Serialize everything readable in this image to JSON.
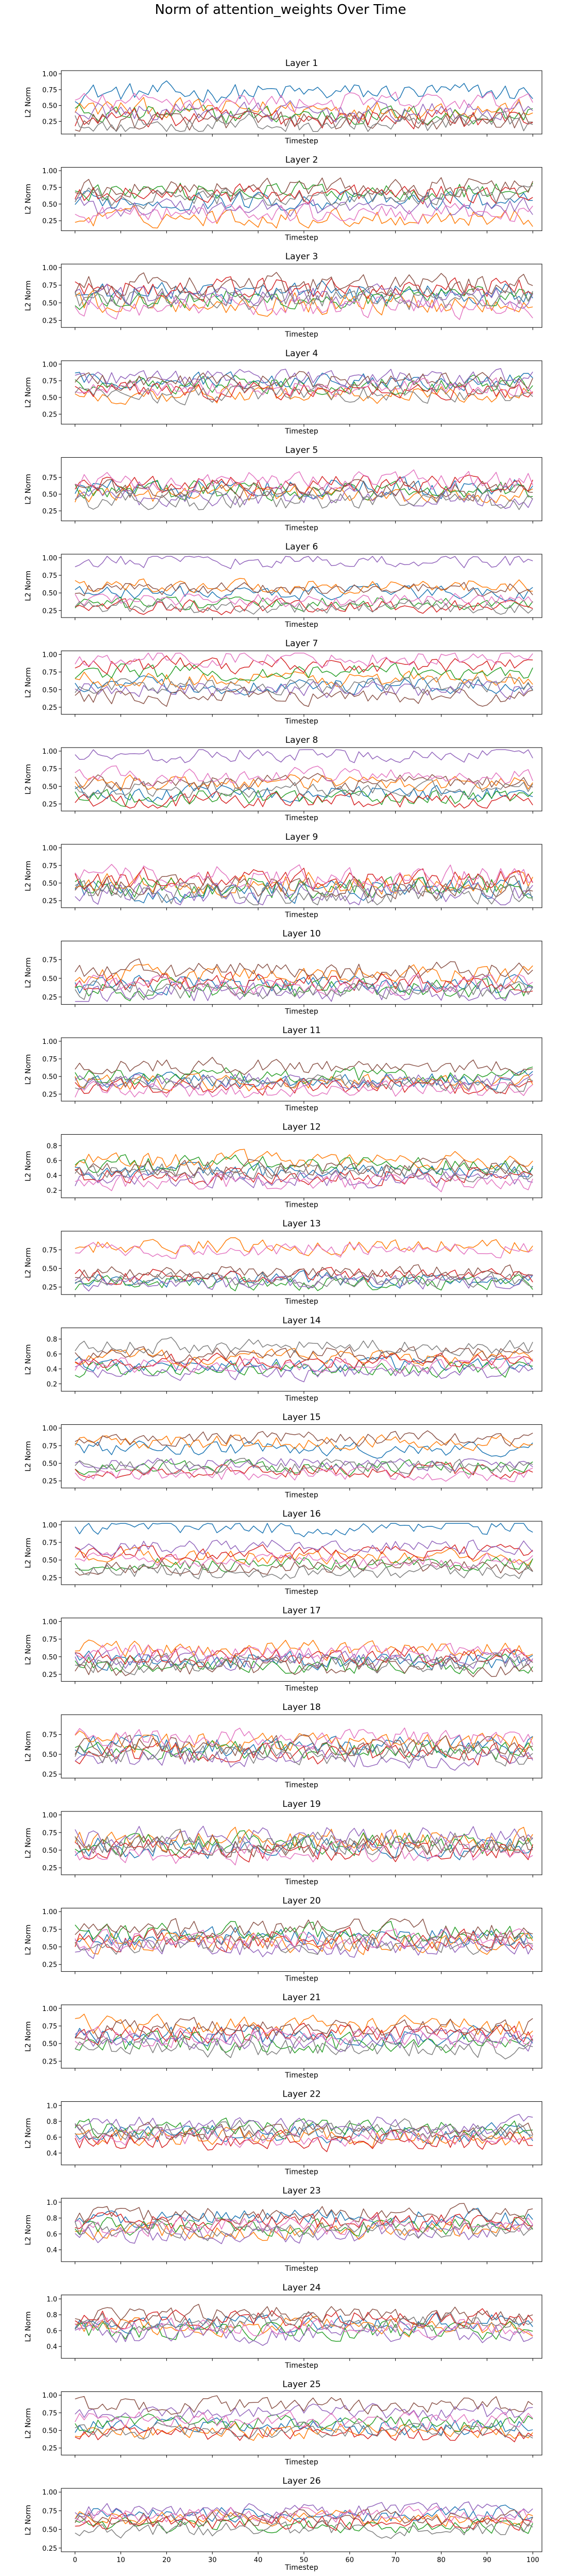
{
  "figure": {
    "suptitle": "Norm of attention_weights Over Time"
  },
  "colors": [
    "#1f77b4",
    "#ff7f0e",
    "#2ca02c",
    "#d62728",
    "#9467bd",
    "#8c564b",
    "#e377c2",
    "#7f7f7f"
  ],
  "chart_data": {
    "type": "line",
    "xlabel": "Timestep",
    "ylabel": "L2 Norm",
    "xlim": [
      -3,
      102
    ],
    "x_ticks": [
      0,
      10,
      20,
      30,
      40,
      50,
      60,
      70,
      80,
      90,
      100
    ],
    "x_ticks_shown_on": "Layer 26",
    "points_per_series": 101,
    "series_per_layer": 8,
    "grid": false,
    "legend": "none",
    "layers": [
      {
        "title": "Layer 1",
        "ylim": [
          0.05,
          1.05
        ],
        "yticks": [
          "0.25",
          "0.50",
          "0.75",
          "1.00"
        ],
        "levels": [
          0.7,
          0.45,
          0.35,
          0.3,
          0.4,
          0.25,
          0.55,
          0.2
        ],
        "amplitude": 0.22
      },
      {
        "title": "Layer 2",
        "ylim": [
          0.1,
          1.05
        ],
        "yticks": [
          "0.25",
          "0.50",
          "0.75",
          "1.00"
        ],
        "levels": [
          0.55,
          0.3,
          0.7,
          0.65,
          0.45,
          0.75,
          0.35,
          0.6
        ],
        "amplitude": 0.2
      },
      {
        "title": "Layer 3",
        "ylim": [
          0.15,
          1.05
        ],
        "yticks": [
          "0.25",
          "0.50",
          "0.75",
          "1.00"
        ],
        "levels": [
          0.65,
          0.5,
          0.55,
          0.7,
          0.6,
          0.75,
          0.45,
          0.55
        ],
        "amplitude": 0.22
      },
      {
        "title": "Layer 4",
        "ylim": [
          0.1,
          1.05
        ],
        "yticks": [
          "0.25",
          "0.50",
          "0.75",
          "1.00"
        ],
        "levels": [
          0.75,
          0.55,
          0.7,
          0.6,
          0.8,
          0.75,
          0.65,
          0.55
        ],
        "amplitude": 0.18
      },
      {
        "title": "Layer 5",
        "ylim": [
          0.1,
          1.05
        ],
        "yticks": [
          "0.25",
          "0.50",
          "0.75"
        ],
        "levels": [
          0.6,
          0.5,
          0.55,
          0.65,
          0.45,
          0.55,
          0.7,
          0.4
        ],
        "amplitude": 0.2
      },
      {
        "title": "Layer 6",
        "ylim": [
          0.15,
          1.05
        ],
        "yticks": [
          "0.25",
          "0.50",
          "0.75",
          "1.00"
        ],
        "levels": [
          0.5,
          0.6,
          0.35,
          0.3,
          0.95,
          0.55,
          0.4,
          0.3
        ],
        "amplitude": 0.14
      },
      {
        "title": "Layer 7",
        "ylim": [
          0.15,
          1.05
        ],
        "yticks": [
          "0.25",
          "0.50",
          "0.75",
          "1.00"
        ],
        "levels": [
          0.55,
          0.65,
          0.75,
          0.85,
          0.5,
          0.4,
          0.95,
          0.55
        ],
        "amplitude": 0.16
      },
      {
        "title": "Layer 8",
        "ylim": [
          0.15,
          1.05
        ],
        "yticks": [
          "0.25",
          "0.50",
          "0.75",
          "1.00"
        ],
        "levels": [
          0.4,
          0.55,
          0.35,
          0.3,
          0.95,
          0.55,
          0.65,
          0.45
        ],
        "amplitude": 0.16
      },
      {
        "title": "Layer 9",
        "ylim": [
          0.15,
          1.05
        ],
        "yticks": [
          "0.25",
          "0.50",
          "0.75",
          "1.00"
        ],
        "levels": [
          0.4,
          0.5,
          0.45,
          0.55,
          0.35,
          0.45,
          0.6,
          0.35
        ],
        "amplitude": 0.22
      },
      {
        "title": "Layer 10",
        "ylim": [
          0.15,
          1.0
        ],
        "yticks": [
          "0.25",
          "0.50",
          "0.75"
        ],
        "levels": [
          0.4,
          0.55,
          0.35,
          0.45,
          0.3,
          0.6,
          0.4,
          0.35
        ],
        "amplitude": 0.18
      },
      {
        "title": "Layer 11",
        "ylim": [
          0.15,
          1.05
        ],
        "yticks": [
          "0.25",
          "0.50",
          "0.75",
          "1.00"
        ],
        "levels": [
          0.45,
          0.4,
          0.5,
          0.35,
          0.45,
          0.65,
          0.3,
          0.4
        ],
        "amplitude": 0.16
      },
      {
        "title": "Layer 12",
        "ylim": [
          0.1,
          0.95
        ],
        "yticks": [
          "0.2",
          "0.4",
          "0.6",
          "0.8"
        ],
        "levels": [
          0.45,
          0.6,
          0.55,
          0.4,
          0.35,
          0.5,
          0.3,
          0.45
        ],
        "amplitude": 0.16
      },
      {
        "title": "Layer 13",
        "ylim": [
          0.15,
          1.0
        ],
        "yticks": [
          "0.25",
          "0.50",
          "0.75"
        ],
        "levels": [
          0.35,
          0.8,
          0.3,
          0.4,
          0.3,
          0.45,
          0.75,
          0.35
        ],
        "amplitude": 0.14
      },
      {
        "title": "Layer 14",
        "ylim": [
          0.1,
          0.95
        ],
        "yticks": [
          "0.2",
          "0.4",
          "0.6",
          "0.8"
        ],
        "levels": [
          0.45,
          0.55,
          0.4,
          0.5,
          0.35,
          0.6,
          0.45,
          0.7
        ],
        "amplitude": 0.14
      },
      {
        "title": "Layer 15",
        "ylim": [
          0.15,
          1.05
        ],
        "yticks": [
          "0.25",
          "0.50",
          "0.75",
          "1.00"
        ],
        "levels": [
          0.7,
          0.8,
          0.45,
          0.4,
          0.5,
          0.85,
          0.35,
          0.45
        ],
        "amplitude": 0.14
      },
      {
        "title": "Layer 16",
        "ylim": [
          0.15,
          1.05
        ],
        "yticks": [
          "0.25",
          "0.50",
          "0.75",
          "1.00"
        ],
        "levels": [
          0.95,
          0.55,
          0.45,
          0.6,
          0.7,
          0.4,
          0.5,
          0.35
        ],
        "amplitude": 0.15
      },
      {
        "title": "Layer 17",
        "ylim": [
          0.15,
          1.05
        ],
        "yticks": [
          "0.25",
          "0.50",
          "0.75",
          "1.00"
        ],
        "levels": [
          0.45,
          0.6,
          0.4,
          0.5,
          0.45,
          0.35,
          0.55,
          0.4
        ],
        "amplitude": 0.18
      },
      {
        "title": "Layer 18",
        "ylim": [
          0.2,
          1.0
        ],
        "yticks": [
          "0.25",
          "0.50",
          "0.75"
        ],
        "levels": [
          0.6,
          0.65,
          0.55,
          0.5,
          0.45,
          0.6,
          0.7,
          0.5
        ],
        "amplitude": 0.18
      },
      {
        "title": "Layer 19",
        "ylim": [
          0.15,
          1.05
        ],
        "yticks": [
          "0.25",
          "0.50",
          "0.75",
          "1.00"
        ],
        "levels": [
          0.55,
          0.65,
          0.6,
          0.5,
          0.7,
          0.55,
          0.45,
          0.6
        ],
        "amplitude": 0.22
      },
      {
        "title": "Layer 20",
        "ylim": [
          0.15,
          1.05
        ],
        "yticks": [
          "0.25",
          "0.50",
          "0.75",
          "1.00"
        ],
        "levels": [
          0.65,
          0.55,
          0.7,
          0.6,
          0.5,
          0.75,
          0.6,
          0.55
        ],
        "amplitude": 0.2
      },
      {
        "title": "Layer 21",
        "ylim": [
          0.15,
          1.05
        ],
        "yticks": [
          "0.25",
          "0.50",
          "0.75",
          "1.00"
        ],
        "levels": [
          0.6,
          0.75,
          0.5,
          0.65,
          0.55,
          0.7,
          0.6,
          0.45
        ],
        "amplitude": 0.2
      },
      {
        "title": "Layer 22",
        "ylim": [
          0.25,
          1.05
        ],
        "yticks": [
          "0.4",
          "0.6",
          "0.8",
          "1.0"
        ],
        "levels": [
          0.65,
          0.6,
          0.7,
          0.55,
          0.75,
          0.65,
          0.6,
          0.7
        ],
        "amplitude": 0.16
      },
      {
        "title": "Layer 23",
        "ylim": [
          0.25,
          1.05
        ],
        "yticks": [
          "0.4",
          "0.6",
          "0.8",
          "1.0"
        ],
        "levels": [
          0.8,
          0.65,
          0.7,
          0.75,
          0.6,
          0.85,
          0.7,
          0.65
        ],
        "amplitude": 0.16
      },
      {
        "title": "Layer 24",
        "ylim": [
          0.25,
          1.05
        ],
        "yticks": [
          "0.4",
          "0.6",
          "0.8",
          "1.0"
        ],
        "levels": [
          0.7,
          0.65,
          0.6,
          0.75,
          0.55,
          0.8,
          0.65,
          0.7
        ],
        "amplitude": 0.16
      },
      {
        "title": "Layer 25",
        "ylim": [
          0.15,
          1.05
        ],
        "yticks": [
          "0.25",
          "0.50",
          "0.75",
          "1.00"
        ],
        "levels": [
          0.55,
          0.5,
          0.6,
          0.45,
          0.75,
          0.85,
          0.65,
          0.5
        ],
        "amplitude": 0.16
      },
      {
        "title": "Layer 26",
        "ylim": [
          0.2,
          1.05
        ],
        "yticks": [
          "0.25",
          "0.50",
          "0.75",
          "1.00"
        ],
        "levels": [
          0.7,
          0.65,
          0.55,
          0.6,
          0.75,
          0.65,
          0.7,
          0.5
        ],
        "amplitude": 0.14
      }
    ]
  }
}
